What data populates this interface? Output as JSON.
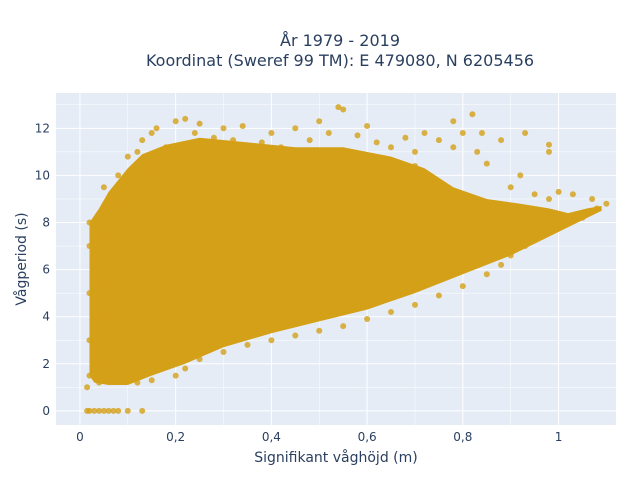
{
  "chart_data": {
    "type": "scatter",
    "title": "År 1979 - 2019",
    "subtitle": "Koordinat (Sweref 99 TM): E 479080, N 6205456",
    "xlabel": "Signifikant våghöjd (m)",
    "ylabel": "Vågperiod (s)",
    "xlim": [
      -0.05,
      1.12
    ],
    "ylim": [
      -0.6,
      13.5
    ],
    "xticks": [
      0,
      0.2,
      0.4,
      0.6,
      0.8,
      1
    ],
    "xtick_labels": [
      "0",
      "0,2",
      "0,4",
      "0,6",
      "0,8",
      "1"
    ],
    "yticks": [
      0,
      2,
      4,
      6,
      8,
      10,
      12
    ],
    "ytick_labels": [
      "0",
      "2",
      "4",
      "6",
      "8",
      "10",
      "12"
    ],
    "grid": true,
    "point_color": "#D4A017",
    "plot_background": "#E5ECF6",
    "points": [
      [
        0.015,
        1.0
      ],
      [
        0.02,
        1.5
      ],
      [
        0.02,
        3.0
      ],
      [
        0.02,
        5.0
      ],
      [
        0.02,
        7.0
      ],
      [
        0.02,
        8.0
      ],
      [
        0.03,
        2.5
      ],
      [
        0.03,
        6.5
      ],
      [
        0.04,
        1.2
      ],
      [
        0.04,
        4.0
      ],
      [
        0.04,
        7.5
      ],
      [
        0.05,
        9.5
      ],
      [
        0.05,
        2.0
      ],
      [
        0.06,
        9.0
      ],
      [
        0.06,
        5.5
      ],
      [
        0.07,
        8.8
      ],
      [
        0.08,
        10.0
      ],
      [
        0.08,
        1.5
      ],
      [
        0.09,
        9.7
      ],
      [
        0.1,
        10.8
      ],
      [
        0.1,
        3.0
      ],
      [
        0.12,
        11.0
      ],
      [
        0.12,
        1.2
      ],
      [
        0.13,
        11.5
      ],
      [
        0.14,
        10.5
      ],
      [
        0.15,
        11.8
      ],
      [
        0.15,
        1.3
      ],
      [
        0.16,
        12.0
      ],
      [
        0.18,
        11.2
      ],
      [
        0.2,
        12.3
      ],
      [
        0.2,
        1.5
      ],
      [
        0.22,
        12.4
      ],
      [
        0.22,
        1.8
      ],
      [
        0.24,
        11.8
      ],
      [
        0.25,
        12.2
      ],
      [
        0.25,
        2.2
      ],
      [
        0.28,
        11.6
      ],
      [
        0.3,
        12.0
      ],
      [
        0.3,
        2.5
      ],
      [
        0.32,
        11.5
      ],
      [
        0.34,
        12.1
      ],
      [
        0.35,
        2.8
      ],
      [
        0.38,
        11.4
      ],
      [
        0.4,
        11.8
      ],
      [
        0.4,
        3.0
      ],
      [
        0.42,
        11.2
      ],
      [
        0.45,
        12.0
      ],
      [
        0.45,
        3.2
      ],
      [
        0.48,
        11.5
      ],
      [
        0.5,
        12.3
      ],
      [
        0.5,
        3.4
      ],
      [
        0.52,
        11.8
      ],
      [
        0.54,
        12.9
      ],
      [
        0.55,
        12.8
      ],
      [
        0.55,
        3.6
      ],
      [
        0.58,
        11.7
      ],
      [
        0.6,
        12.1
      ],
      [
        0.6,
        3.9
      ],
      [
        0.62,
        11.4
      ],
      [
        0.65,
        11.2
      ],
      [
        0.65,
        4.2
      ],
      [
        0.68,
        11.6
      ],
      [
        0.7,
        11.0
      ],
      [
        0.7,
        4.5
      ],
      [
        0.72,
        11.8
      ],
      [
        0.75,
        11.5
      ],
      [
        0.75,
        4.9
      ],
      [
        0.78,
        11.2
      ],
      [
        0.78,
        12.3
      ],
      [
        0.8,
        11.8
      ],
      [
        0.8,
        5.3
      ],
      [
        0.82,
        12.6
      ],
      [
        0.83,
        11.0
      ],
      [
        0.85,
        10.5
      ],
      [
        0.85,
        5.8
      ],
      [
        0.88,
        11.5
      ],
      [
        0.88,
        6.2
      ],
      [
        0.9,
        9.5
      ],
      [
        0.9,
        6.6
      ],
      [
        0.92,
        10.0
      ],
      [
        0.93,
        7.0
      ],
      [
        0.95,
        9.2
      ],
      [
        0.96,
        7.4
      ],
      [
        0.98,
        9.0
      ],
      [
        1.0,
        7.8
      ],
      [
        1.0,
        9.3
      ],
      [
        1.02,
        8.0
      ],
      [
        1.03,
        9.2
      ],
      [
        1.05,
        8.2
      ],
      [
        1.07,
        9.0
      ],
      [
        1.08,
        8.6
      ],
      [
        1.1,
        8.8
      ],
      [
        0.98,
        11.3
      ],
      [
        0.93,
        11.8
      ],
      [
        0.84,
        11.8
      ],
      [
        0.98,
        11.0
      ],
      [
        0.7,
        10.4
      ],
      [
        0.6,
        10.3
      ],
      [
        0.5,
        10.0
      ],
      [
        0.4,
        10.2
      ],
      [
        0.3,
        10.5
      ],
      [
        0.2,
        10.4
      ],
      [
        0.15,
        10.2
      ]
    ],
    "zero_points": [
      [
        0.015,
        0
      ],
      [
        0.02,
        0
      ],
      [
        0.03,
        0
      ],
      [
        0.04,
        0
      ],
      [
        0.05,
        0
      ],
      [
        0.06,
        0
      ],
      [
        0.07,
        0
      ],
      [
        0.08,
        0
      ],
      [
        0.1,
        0
      ],
      [
        0.13,
        0
      ]
    ]
  }
}
